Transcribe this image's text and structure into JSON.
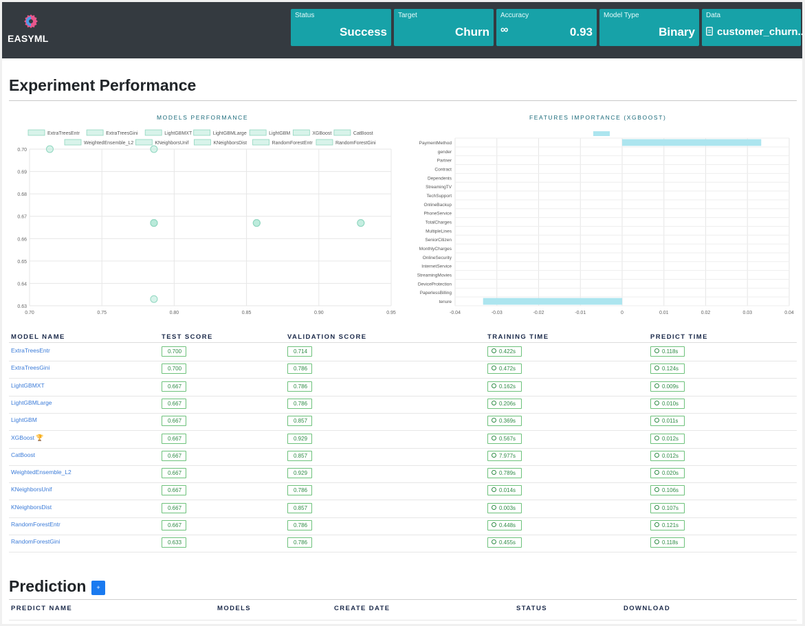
{
  "app": {
    "name": "EASYML"
  },
  "summary_cards": [
    {
      "label": "Status",
      "value": "Success"
    },
    {
      "label": "Target",
      "value": "Churn"
    },
    {
      "label": "Accuracy",
      "icon": "infinity-icon",
      "value": "0.93"
    },
    {
      "label": "Model Type",
      "value": "Binary"
    },
    {
      "label": "Data",
      "icon": "file-icon",
      "value": "customer_churn..."
    }
  ],
  "page": {
    "title": "Experiment Performance"
  },
  "models_chart": {
    "title": "MODELS PERFORMANCE",
    "legend": [
      "ExtraTreesEntr",
      "ExtraTreesGini",
      "LightGBMXT",
      "LightGBMLarge",
      "LightGBM",
      "XGBoost",
      "CatBoost",
      "WeightedEnsemble_L2",
      "KNeighborsUnif",
      "KNeighborsDist",
      "RandomForestEntr",
      "RandomForestGini"
    ],
    "x_ticks": [
      "0.70",
      "0.75",
      "0.80",
      "0.85",
      "0.90",
      "0.95"
    ],
    "y_ticks": [
      "0.70",
      "0.69",
      "0.68",
      "0.67",
      "0.66",
      "0.65",
      "0.64",
      "0.63"
    ]
  },
  "features_chart": {
    "title": "FEATURES IMPORTANCE (XGBOOST)",
    "x_ticks": [
      "-0.04",
      "-0.03",
      "-0.02",
      "-0.01",
      "0",
      "0.01",
      "0.02",
      "0.03",
      "0.04"
    ]
  },
  "chart_data": [
    {
      "type": "scatter",
      "title": "MODELS PERFORMANCE",
      "xlim": [
        0.7,
        0.95
      ],
      "ylim": [
        0.63,
        0.7
      ],
      "grid": true,
      "legend_position": "top",
      "series_color": "#b7ead8",
      "points": [
        {
          "model": "ExtraTreesEntr",
          "x": 0.714,
          "y": 0.7
        },
        {
          "model": "ExtraTreesGini",
          "x": 0.786,
          "y": 0.7
        },
        {
          "model": "LightGBMXT",
          "x": 0.786,
          "y": 0.667
        },
        {
          "model": "LightGBMLarge",
          "x": 0.786,
          "y": 0.667
        },
        {
          "model": "LightGBM",
          "x": 0.857,
          "y": 0.667
        },
        {
          "model": "XGBoost",
          "x": 0.929,
          "y": 0.667
        },
        {
          "model": "CatBoost",
          "x": 0.857,
          "y": 0.667
        },
        {
          "model": "WeightedEnsemble_L2",
          "x": 0.929,
          "y": 0.667
        },
        {
          "model": "KNeighborsUnif",
          "x": 0.786,
          "y": 0.667
        },
        {
          "model": "KNeighborsDist",
          "x": 0.857,
          "y": 0.667
        },
        {
          "model": "RandomForestEntr",
          "x": 0.786,
          "y": 0.667
        },
        {
          "model": "RandomForestGini",
          "x": 0.786,
          "y": 0.633
        }
      ]
    },
    {
      "type": "bar",
      "orientation": "horizontal",
      "title": "FEATURES IMPORTANCE (XGBOOST)",
      "xlim": [
        -0.04,
        0.04
      ],
      "bar_color": "#ace5ef",
      "legend_swatch": true,
      "categories": [
        "PaymentMethod",
        "gender",
        "Partner",
        "Contract",
        "Dependents",
        "StreamingTV",
        "TechSupport",
        "OnlineBackup",
        "PhoneService",
        "TotalCharges",
        "MultipleLines",
        "SeniorCitizen",
        "MonthlyCharges",
        "OnlineSecurity",
        "InternetService",
        "StreamingMovies",
        "DeviceProtection",
        "PaperlessBilling",
        "tenure"
      ],
      "values": [
        0.0333,
        0,
        0,
        0,
        0,
        0,
        0,
        0,
        0,
        0,
        0,
        0,
        0,
        0,
        0,
        0,
        0,
        0,
        -0.0333
      ]
    }
  ],
  "models_table": {
    "headers": [
      "MODEL NAME",
      "TEST SCORE",
      "VALIDATION SCORE",
      "TRAINING TIME",
      "PREDICT TIME"
    ],
    "rows": [
      {
        "name": "ExtraTreesEntr",
        "test": "0.700",
        "validation": "0.714",
        "training": "0.422s",
        "predict": "0.118s"
      },
      {
        "name": "ExtraTreesGini",
        "test": "0.700",
        "validation": "0.786",
        "training": "0.472s",
        "predict": "0.124s"
      },
      {
        "name": "LightGBMXT",
        "test": "0.667",
        "validation": "0.786",
        "training": "0.162s",
        "predict": "0.009s"
      },
      {
        "name": "LightGBMLarge",
        "test": "0.667",
        "validation": "0.786",
        "training": "0.206s",
        "predict": "0.010s"
      },
      {
        "name": "LightGBM",
        "test": "0.667",
        "validation": "0.857",
        "training": "0.369s",
        "predict": "0.011s"
      },
      {
        "name": "XGBoost",
        "trophy": "🏆",
        "test": "0.667",
        "validation": "0.929",
        "training": "0.567s",
        "predict": "0.012s"
      },
      {
        "name": "CatBoost",
        "test": "0.667",
        "validation": "0.857",
        "training": "7.977s",
        "predict": "0.012s"
      },
      {
        "name": "WeightedEnsemble_L2",
        "test": "0.667",
        "validation": "0.929",
        "training": "0.789s",
        "predict": "0.020s"
      },
      {
        "name": "KNeighborsUnif",
        "test": "0.667",
        "validation": "0.786",
        "training": "0.014s",
        "predict": "0.106s"
      },
      {
        "name": "KNeighborsDist",
        "test": "0.667",
        "validation": "0.857",
        "training": "0.003s",
        "predict": "0.107s"
      },
      {
        "name": "RandomForestEntr",
        "test": "0.667",
        "validation": "0.786",
        "training": "0.448s",
        "predict": "0.121s"
      },
      {
        "name": "RandomForestGini",
        "test": "0.633",
        "validation": "0.786",
        "training": "0.455s",
        "predict": "0.118s"
      }
    ]
  },
  "prediction": {
    "title": "Prediction",
    "add_label": "+",
    "headers": [
      "PREDICT NAME",
      "MODELS",
      "CREATE DATE",
      "STATUS",
      "DOWNLOAD"
    ]
  }
}
